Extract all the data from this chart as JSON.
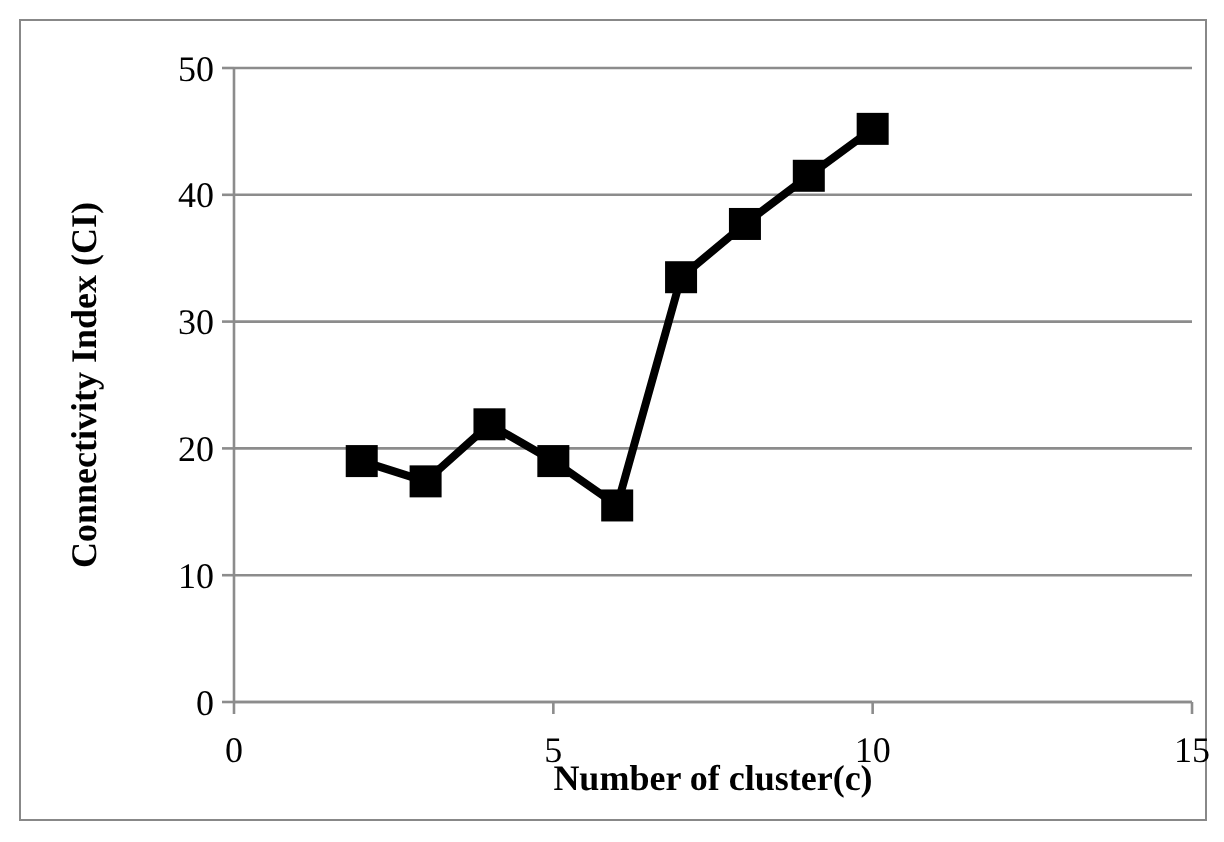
{
  "chart_data": {
    "type": "line",
    "xlabel": "Number  of cluster(c)",
    "ylabel": "Connectivity  Index  (CI)",
    "x": [
      2,
      3,
      4,
      5,
      6,
      7,
      8,
      9,
      10
    ],
    "series": [
      {
        "color": "#000000",
        "values": [
          19.0,
          17.4,
          21.9,
          19.0,
          15.5,
          33.5,
          37.7,
          41.5,
          45.2
        ]
      }
    ],
    "xlim": [
      0,
      15
    ],
    "xticks": [
      0,
      5,
      10,
      15
    ],
    "ylim": [
      0,
      50
    ],
    "yticks": [
      0,
      10,
      20,
      30,
      40,
      50
    ],
    "grid": "y",
    "marker": "square",
    "line_style": "solid"
  }
}
